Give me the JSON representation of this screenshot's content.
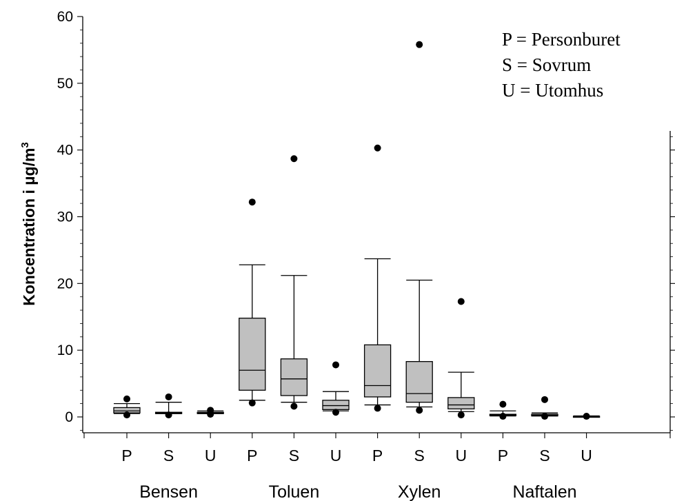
{
  "chart_data": {
    "type": "box",
    "ylabel": "Koncentration i µg/m",
    "ylabel_superscript": "3",
    "ylim": [
      -2.5,
      60
    ],
    "yticks": [
      0,
      10,
      20,
      30,
      40,
      50,
      60
    ],
    "legend": [
      "P = Personburet",
      "S = Sovrum",
      "U = Utomhus"
    ],
    "legend_position": "top-right",
    "groups": [
      "Bensen",
      "Toluen",
      "Xylen",
      "Naftalen"
    ],
    "categories": [
      "P",
      "S",
      "U",
      "P",
      "S",
      "U",
      "P",
      "S",
      "U",
      "P",
      "S",
      "U"
    ],
    "boxes": [
      {
        "group": "Bensen",
        "category": "P",
        "whisker_low": 0.5,
        "q1": 0.6,
        "median": 0.9,
        "q3": 1.4,
        "whisker_high": 2.0,
        "outliers": [
          0.3,
          2.7
        ]
      },
      {
        "group": "Bensen",
        "category": "S",
        "whisker_low": 0.5,
        "q1": 0.5,
        "median": 0.6,
        "q3": 0.7,
        "whisker_high": 2.2,
        "outliers": [
          0.3,
          3.0
        ]
      },
      {
        "group": "Bensen",
        "category": "U",
        "whisker_low": 0.5,
        "q1": 0.5,
        "median": 0.6,
        "q3": 0.7,
        "whisker_high": 0.9,
        "outliers": [
          0.4,
          1.0
        ]
      },
      {
        "group": "Toluen",
        "category": "P",
        "whisker_low": 2.5,
        "q1": 4.0,
        "median": 7.0,
        "q3": 14.8,
        "whisker_high": 22.8,
        "outliers": [
          2.1,
          32.2
        ]
      },
      {
        "group": "Toluen",
        "category": "S",
        "whisker_low": 2.2,
        "q1": 3.2,
        "median": 5.7,
        "q3": 8.7,
        "whisker_high": 21.2,
        "outliers": [
          1.6,
          38.7
        ]
      },
      {
        "group": "Toluen",
        "category": "U",
        "whisker_low": 0.9,
        "q1": 1.1,
        "median": 1.7,
        "q3": 2.5,
        "whisker_high": 3.8,
        "outliers": [
          0.7,
          7.8
        ]
      },
      {
        "group": "Xylen",
        "category": "P",
        "whisker_low": 1.8,
        "q1": 3.0,
        "median": 4.7,
        "q3": 10.8,
        "whisker_high": 23.7,
        "outliers": [
          1.3,
          40.3
        ]
      },
      {
        "group": "Xylen",
        "category": "S",
        "whisker_low": 1.5,
        "q1": 2.2,
        "median": 3.5,
        "q3": 8.3,
        "whisker_high": 20.5,
        "outliers": [
          1.0,
          55.8
        ]
      },
      {
        "group": "Xylen",
        "category": "U",
        "whisker_low": 0.8,
        "q1": 1.2,
        "median": 1.8,
        "q3": 2.9,
        "whisker_high": 6.7,
        "outliers": [
          0.3,
          17.3
        ]
      },
      {
        "group": "Naftalen",
        "category": "P",
        "whisker_low": 0.15,
        "q1": 0.2,
        "median": 0.3,
        "q3": 0.4,
        "whisker_high": 0.9,
        "outliers": [
          0.1,
          1.9
        ]
      },
      {
        "group": "Naftalen",
        "category": "S",
        "whisker_low": 0.15,
        "q1": 0.15,
        "median": 0.25,
        "q3": 0.4,
        "whisker_high": 0.6,
        "outliers": [
          0.1,
          2.6
        ]
      },
      {
        "group": "Naftalen",
        "category": "U",
        "whisker_low": 0.05,
        "q1": 0.05,
        "median": 0.1,
        "q3": 0.1,
        "whisker_high": 0.15,
        "outliers": [
          0.1
        ]
      }
    ]
  }
}
